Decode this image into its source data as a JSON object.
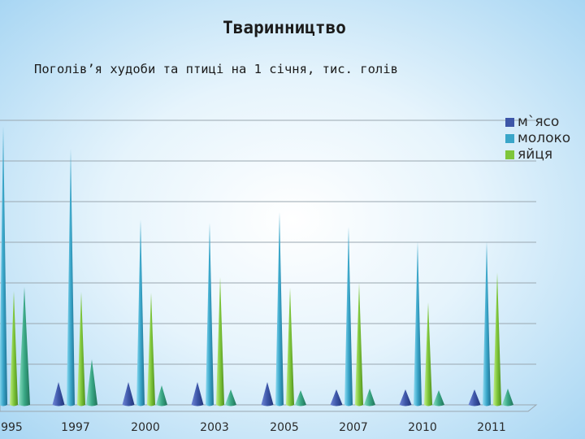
{
  "slide": {
    "title": "Тваринництво"
  },
  "chart_data": {
    "type": "bar",
    "title": "Поголів’я худоби та птиці на 1 січня, тис. голів",
    "categories": [
      "1995",
      "1997",
      "2000",
      "2003",
      "2005",
      "2007",
      "2010",
      "2011"
    ],
    "series": [
      {
        "name": "м`ясо",
        "color": "#3d56a8",
        "values": [
          null,
          28,
          28,
          28,
          28,
          19,
          19,
          19
        ]
      },
      {
        "name": "молоко",
        "color": "#3aa6c9",
        "values": [
          343,
          315,
          228,
          224,
          237,
          219,
          201,
          201
        ]
      },
      {
        "name": "яйця",
        "color": "#7ec63a",
        "values": [
          140,
          139,
          138,
          157,
          144,
          150,
          126,
          163
        ]
      },
      {
        "name": "",
        "color": "#3aa886",
        "values": [
          145,
          56,
          24,
          19,
          18,
          20,
          18,
          20
        ]
      }
    ],
    "ylim": [
      0,
      380
    ],
    "grid": true,
    "legend": "right"
  }
}
